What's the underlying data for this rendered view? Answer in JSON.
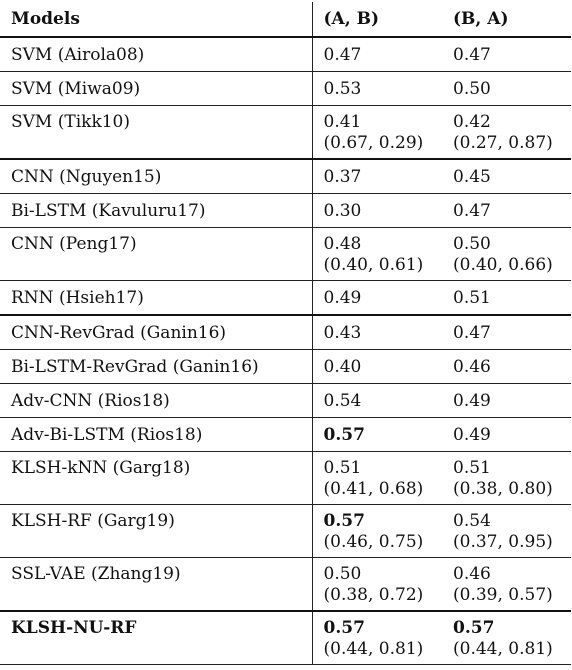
{
  "headers": [
    "Models",
    "(A, B)",
    "(B, A)"
  ],
  "rows": [
    {
      "model": "SVM (Airola08)",
      "ab": "0.47",
      "ab_ci": "",
      "ba": "0.47",
      "ba_ci": ""
    },
    {
      "model": "SVM (Miwa09)",
      "ab": "0.53",
      "ab_ci": "",
      "ba": "0.50",
      "ba_ci": ""
    },
    {
      "model": "SVM (Tikk10)",
      "ab": "0.41",
      "ab_ci": "(0.67, 0.29)",
      "ba": "0.42",
      "ba_ci": "(0.27, 0.87)"
    },
    {
      "model": "CNN (Nguyen15)",
      "ab": "0.37",
      "ab_ci": "",
      "ba": "0.45",
      "ba_ci": ""
    },
    {
      "model": "Bi-LSTM (Kavuluru17)",
      "ab": "0.30",
      "ab_ci": "",
      "ba": "0.47",
      "ba_ci": ""
    },
    {
      "model": "CNN (Peng17)",
      "ab": "0.48",
      "ab_ci": "(0.40, 0.61)",
      "ba": "0.50",
      "ba_ci": "(0.40, 0.66)"
    },
    {
      "model": "RNN (Hsieh17)",
      "ab": "0.49",
      "ab_ci": "",
      "ba": "0.51",
      "ba_ci": ""
    },
    {
      "model": "CNN-RevGrad (Ganin16)",
      "ab": "0.43",
      "ab_ci": "",
      "ba": "0.47",
      "ba_ci": ""
    },
    {
      "model": "Bi-LSTM-RevGrad (Ganin16)",
      "ab": "0.40",
      "ab_ci": "",
      "ba": "0.46",
      "ba_ci": ""
    },
    {
      "model": "Adv-CNN (Rios18)",
      "ab": "0.54",
      "ab_ci": "",
      "ba": "0.49",
      "ba_ci": ""
    },
    {
      "model": "Adv-Bi-LSTM (Rios18)",
      "ab": "0.57",
      "ab_ci": "",
      "ba": "0.49",
      "ba_ci": ""
    },
    {
      "model": "KLSH-kNN (Garg18)",
      "ab": "0.51",
      "ab_ci": "(0.41, 0.68)",
      "ba": "0.51",
      "ba_ci": "(0.38, 0.80)"
    },
    {
      "model": "KLSH-RF (Garg19)",
      "ab": "0.57",
      "ab_ci": "(0.46, 0.75)",
      "ba": "0.54",
      "ba_ci": "(0.37, 0.95)"
    },
    {
      "model": "SSL-VAE (Zhang19)",
      "ab": "0.50",
      "ab_ci": "(0.38, 0.72)",
      "ba": "0.46",
      "ba_ci": "(0.39, 0.57)"
    },
    {
      "model": "KLSH-NU-RF",
      "ab": "0.57",
      "ab_ci": "(0.44, 0.81)",
      "ba": "0.57",
      "ba_ci": "(0.44, 0.81)"
    }
  ]
}
